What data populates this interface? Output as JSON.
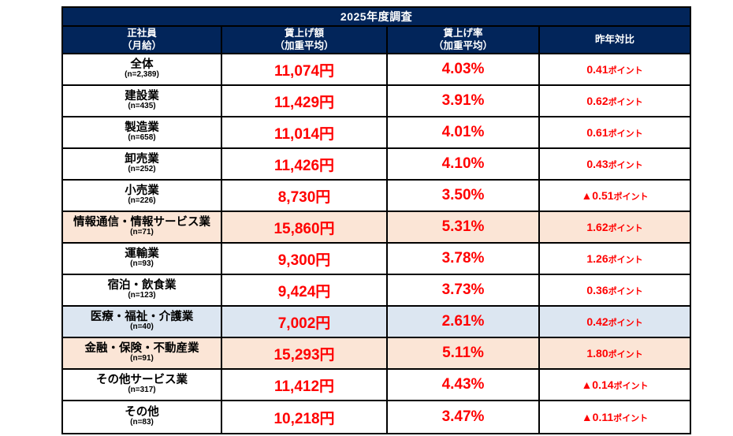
{
  "title": "2025年度調査",
  "columns": {
    "col1_line1": "正社員",
    "col1_line2": "（月給）",
    "col2_line1": "賃上げ額",
    "col2_line2": "（加重平均）",
    "col3_line1": "賃上げ率",
    "col3_line2": "（加重平均）",
    "col4": "昨年対比"
  },
  "colors": {
    "header_bg": "#02255a",
    "header_text": "#ffffff",
    "value_red": "#ff0000",
    "row_white": "#ffffff",
    "row_peach": "#fbe5d6",
    "row_blue": "#dce6f1",
    "border": "#000000"
  },
  "rows": [
    {
      "name": "全体",
      "n": "(n=2,389)",
      "amount": "11,074円",
      "rate": "4.03%",
      "diff": "0.41",
      "diff_unit": "ポイント",
      "bg": "#ffffff"
    },
    {
      "name": "建設業",
      "n": "(n=435)",
      "amount": "11,429円",
      "rate": "3.91%",
      "diff": "0.62",
      "diff_unit": "ポイント",
      "bg": "#ffffff"
    },
    {
      "name": "製造業",
      "n": "(n=658)",
      "amount": "11,014円",
      "rate": "4.01%",
      "diff": "0.61",
      "diff_unit": "ポイント",
      "bg": "#ffffff"
    },
    {
      "name": "卸売業",
      "n": "(n=252)",
      "amount": "11,426円",
      "rate": "4.10%",
      "diff": "0.43",
      "diff_unit": "ポイント",
      "bg": "#ffffff"
    },
    {
      "name": "小売業",
      "n": "(n=226)",
      "amount": "8,730円",
      "rate": "3.50%",
      "diff": "▲0.51",
      "diff_unit": "ポイント",
      "bg": "#ffffff"
    },
    {
      "name": "情報通信・情報サービス業",
      "n": "(n=71)",
      "amount": "15,860円",
      "rate": "5.31%",
      "diff": "1.62",
      "diff_unit": "ポイント",
      "bg": "#fbe5d6"
    },
    {
      "name": "運輸業",
      "n": "(n=93)",
      "amount": "9,300円",
      "rate": "3.78%",
      "diff": "1.26",
      "diff_unit": "ポイント",
      "bg": "#ffffff"
    },
    {
      "name": "宿泊・飲食業",
      "n": "(n=123)",
      "amount": "9,424円",
      "rate": "3.73%",
      "diff": "0.36",
      "diff_unit": "ポイント",
      "bg": "#ffffff"
    },
    {
      "name": "医療・福祉・介護業",
      "n": "(n=40)",
      "amount": "7,002円",
      "rate": "2.61%",
      "diff": "0.42",
      "diff_unit": "ポイント",
      "bg": "#dce6f1"
    },
    {
      "name": "金融・保険・不動産業",
      "n": "(n=91)",
      "amount": "15,293円",
      "rate": "5.11%",
      "diff": "1.80",
      "diff_unit": "ポイント",
      "bg": "#fbe5d6"
    },
    {
      "name": "その他サービス業",
      "n": "(n=317)",
      "amount": "11,412円",
      "rate": "4.43%",
      "diff": "▲0.14",
      "diff_unit": "ポイント",
      "bg": "#ffffff"
    },
    {
      "name": "その他",
      "n": "(n=83)",
      "amount": "10,218円",
      "rate": "3.47%",
      "diff": "▲0.11",
      "diff_unit": "ポイント",
      "bg": "#ffffff"
    }
  ],
  "chart_data": {
    "type": "table",
    "title": "2025年度調査",
    "columns": [
      "正社員（月給）",
      "賃上げ額（加重平均）",
      "賃上げ率（加重平均）",
      "昨年対比"
    ],
    "rows": [
      [
        "全体 (n=2,389)",
        "11,074円",
        "4.03%",
        "0.41ポイント"
      ],
      [
        "建設業 (n=435)",
        "11,429円",
        "3.91%",
        "0.62ポイント"
      ],
      [
        "製造業 (n=658)",
        "11,014円",
        "4.01%",
        "0.61ポイント"
      ],
      [
        "卸売業 (n=252)",
        "11,426円",
        "4.10%",
        "0.43ポイント"
      ],
      [
        "小売業 (n=226)",
        "8,730円",
        "3.50%",
        "▲0.51ポイント"
      ],
      [
        "情報通信・情報サービス業 (n=71)",
        "15,860円",
        "5.31%",
        "1.62ポイント"
      ],
      [
        "運輸業 (n=93)",
        "9,300円",
        "3.78%",
        "1.26ポイント"
      ],
      [
        "宿泊・飲食業 (n=123)",
        "9,424円",
        "3.73%",
        "0.36ポイント"
      ],
      [
        "医療・福祉・介護業 (n=40)",
        "7,002円",
        "2.61%",
        "0.42ポイント"
      ],
      [
        "金融・保険・不動産業 (n=91)",
        "15,293円",
        "5.11%",
        "1.80ポイント"
      ],
      [
        "その他サービス業 (n=317)",
        "11,412円",
        "4.43%",
        "▲0.14ポイント"
      ],
      [
        "その他 (n=83)",
        "10,218円",
        "3.47%",
        "▲0.11ポイント"
      ]
    ],
    "highlighted_rows": {
      "peach": [
        "情報通信・情報サービス業",
        "金融・保険・不動産業"
      ],
      "blue": [
        "医療・福祉・介護業"
      ]
    }
  }
}
